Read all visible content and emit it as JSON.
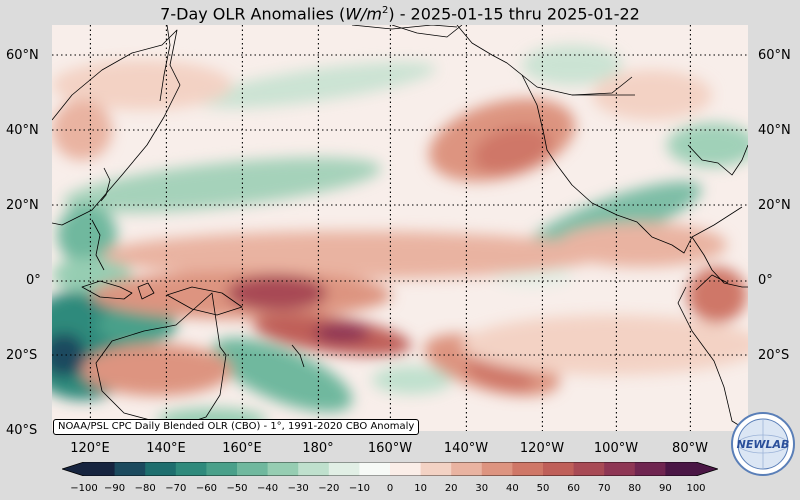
{
  "map": {
    "title_prefix": "7-Day OLR Anomalies (",
    "title_unit_base": "W/m",
    "title_unit_exp": "2",
    "title_suffix": ") - 2025-01-15 thru 2025-01-22",
    "lat_labels": [
      "60°N",
      "40°N",
      "20°N",
      "0°",
      "20°S",
      "40°S"
    ],
    "lon_labels": [
      "120°E",
      "140°E",
      "160°E",
      "180°",
      "160°W",
      "140°W",
      "120°W",
      "100°W",
      "80°W"
    ],
    "colorbar": {
      "ticks": [
        "−100",
        "−90",
        "−80",
        "−70",
        "−60",
        "−50",
        "−40",
        "−30",
        "−20",
        "−10",
        "0",
        "10",
        "20",
        "30",
        "40",
        "50",
        "60",
        "70",
        "80",
        "90",
        "100"
      ],
      "negative_colors": [
        "#16243f",
        "#1c4a5e",
        "#1e6e6e",
        "#2f8a7c",
        "#4aa08a",
        "#70b89e",
        "#96cdb2",
        "#bfe0cd",
        "#e1efe5",
        "#f7faf7"
      ],
      "positive_colors": [
        "#fbeee8",
        "#f3d2c4",
        "#e9b3a1",
        "#dd9480",
        "#cf7767",
        "#bf5f59",
        "#a84a55",
        "#8e3654",
        "#6f2550",
        "#4a1645"
      ]
    },
    "source_note": "NOAA/PSL CPC Daily Blended OLR (CBO) - 1°, 1991-2020 CBO Anomaly",
    "logo_text": "NEWLAB"
  }
}
